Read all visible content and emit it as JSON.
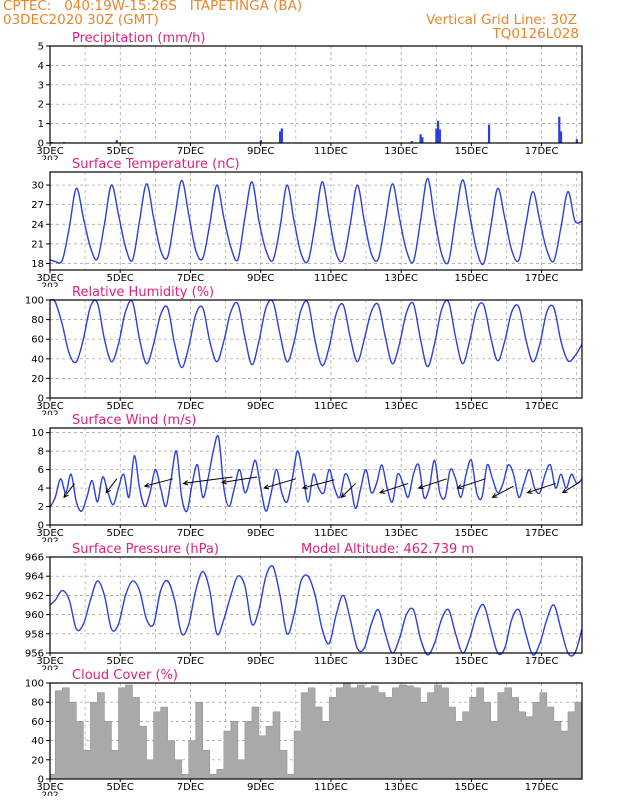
{
  "header": {
    "line1_left": "CPTEC:   040:19W-15:26S   ITAPETINGA (BA)",
    "line2_left": "03DEC2020 30Z (GMT)",
    "line2_right": "Vertical Grid Line: 30Z",
    "line3_right": "TQ0126L028"
  },
  "colors": {
    "header": "#e8862c",
    "title": "#e0207a",
    "series": "#2a3fe0",
    "cloud": "#a9a9a9",
    "grid": "#9a9a9a"
  },
  "x_axis": {
    "tick_labels": [
      "3DEC",
      "5DEC",
      "7DEC",
      "9DEC",
      "11DEC",
      "13DEC",
      "15DEC",
      "17DEC"
    ],
    "tick_days": [
      3,
      5,
      7,
      9,
      11,
      13,
      15,
      17
    ],
    "range_days": [
      3,
      18.15
    ],
    "year_fragment": "202"
  },
  "chart_data": [
    {
      "type": "bar",
      "title": "Precipitation (mm/h)",
      "ylim": [
        0,
        5
      ],
      "yticks": [
        "0",
        "1",
        "2",
        "3",
        "4",
        "5"
      ],
      "x_days": [
        3.05,
        3.4,
        4.9,
        9.0,
        9.55,
        9.6,
        13.3,
        13.55,
        13.6,
        14.0,
        14.05,
        14.1,
        15.5,
        17.5,
        17.55,
        18.0
      ],
      "values": [
        0.05,
        0.05,
        0.15,
        0.15,
        0.6,
        0.75,
        0.1,
        0.45,
        0.3,
        0.75,
        1.15,
        0.7,
        0.95,
        1.35,
        0.6,
        0.2
      ]
    },
    {
      "type": "line",
      "title": "Surface Temperature (nC)",
      "ylim": [
        17,
        32
      ],
      "yticks": [
        "18",
        "21",
        "24",
        "27",
        "30"
      ],
      "x_days": [
        3.0,
        3.15,
        3.35,
        3.55,
        3.75,
        3.95,
        4.15,
        4.35,
        4.55,
        4.75,
        4.95,
        5.15,
        5.35,
        5.55,
        5.75,
        5.95,
        6.15,
        6.35,
        6.55,
        6.75,
        6.95,
        7.15,
        7.35,
        7.55,
        7.75,
        7.95,
        8.15,
        8.35,
        8.55,
        8.75,
        8.95,
        9.15,
        9.35,
        9.55,
        9.75,
        9.95,
        10.15,
        10.35,
        10.55,
        10.75,
        10.95,
        11.15,
        11.35,
        11.55,
        11.75,
        11.95,
        12.15,
        12.35,
        12.55,
        12.75,
        12.95,
        13.15,
        13.35,
        13.55,
        13.75,
        13.95,
        14.15,
        14.35,
        14.55,
        14.75,
        14.95,
        15.15,
        15.35,
        15.55,
        15.75,
        15.95,
        16.15,
        16.35,
        16.55,
        16.75,
        16.95,
        17.15,
        17.35,
        17.55,
        17.75,
        17.95,
        18.15
      ],
      "values": [
        18.6,
        18.3,
        18.5,
        23.5,
        29.5,
        25.0,
        20.5,
        18.7,
        24.0,
        30.0,
        25.5,
        20.5,
        18.5,
        24.5,
        30.2,
        25.0,
        20.0,
        19.0,
        25.0,
        30.7,
        25.5,
        20.0,
        18.8,
        24.0,
        30.0,
        25.0,
        20.5,
        18.6,
        25.0,
        30.5,
        24.5,
        20.0,
        18.5,
        23.5,
        30.0,
        24.5,
        19.5,
        18.4,
        24.0,
        30.5,
        25.0,
        19.5,
        18.6,
        24.0,
        30.0,
        24.5,
        19.5,
        18.7,
        24.5,
        30.2,
        25.0,
        20.0,
        18.3,
        24.5,
        31.0,
        25.0,
        19.5,
        18.3,
        25.0,
        30.8,
        25.5,
        20.0,
        18.0,
        23.5,
        29.5,
        25.0,
        20.0,
        18.5,
        24.0,
        29.0,
        24.5,
        20.0,
        18.4,
        23.5,
        29.0,
        24.5,
        24.5
      ]
    },
    {
      "type": "line",
      "title": "Relative Humidity (%)",
      "ylim": [
        0,
        100
      ],
      "yticks": [
        "0",
        "20",
        "40",
        "60",
        "80",
        "100"
      ],
      "x_days": [
        3.0,
        3.15,
        3.35,
        3.55,
        3.75,
        3.95,
        4.15,
        4.35,
        4.55,
        4.75,
        4.95,
        5.15,
        5.35,
        5.55,
        5.75,
        5.95,
        6.15,
        6.35,
        6.55,
        6.75,
        6.95,
        7.15,
        7.35,
        7.55,
        7.75,
        7.95,
        8.15,
        8.35,
        8.55,
        8.75,
        8.95,
        9.15,
        9.35,
        9.55,
        9.75,
        9.95,
        10.15,
        10.35,
        10.55,
        10.75,
        10.95,
        11.15,
        11.35,
        11.55,
        11.75,
        11.95,
        12.15,
        12.35,
        12.55,
        12.75,
        12.95,
        13.15,
        13.35,
        13.55,
        13.75,
        13.95,
        14.15,
        14.35,
        14.55,
        14.75,
        14.95,
        15.15,
        15.35,
        15.55,
        15.75,
        15.95,
        16.15,
        16.35,
        16.55,
        16.75,
        16.95,
        17.15,
        17.35,
        17.55,
        17.75,
        17.95,
        18.15
      ],
      "values": [
        100,
        98,
        75,
        45,
        37,
        60,
        93,
        97,
        60,
        37,
        55,
        88,
        98,
        60,
        35,
        55,
        85,
        92,
        55,
        31,
        52,
        85,
        92,
        58,
        37,
        58,
        88,
        96,
        62,
        34,
        58,
        92,
        98,
        65,
        37,
        57,
        90,
        97,
        58,
        33,
        52,
        86,
        95,
        62,
        37,
        60,
        88,
        95,
        62,
        35,
        55,
        87,
        96,
        60,
        32,
        55,
        90,
        98,
        62,
        35,
        58,
        90,
        95,
        62,
        38,
        58,
        88,
        93,
        60,
        37,
        55,
        88,
        92,
        58,
        38,
        43,
        55
      ]
    },
    {
      "type": "line",
      "title": "Surface Wind (m/s)",
      "ylim": [
        0,
        10.5
      ],
      "yticks": [
        "0",
        "2",
        "4",
        "6",
        "8",
        "10"
      ],
      "x_days": [
        3.0,
        3.15,
        3.3,
        3.45,
        3.6,
        3.75,
        3.9,
        4.05,
        4.2,
        4.35,
        4.5,
        4.65,
        4.8,
        4.95,
        5.1,
        5.25,
        5.4,
        5.55,
        5.7,
        5.85,
        6.0,
        6.15,
        6.3,
        6.45,
        6.6,
        6.75,
        6.9,
        7.05,
        7.2,
        7.35,
        7.5,
        7.65,
        7.8,
        7.95,
        8.1,
        8.25,
        8.4,
        8.55,
        8.7,
        8.85,
        9.0,
        9.15,
        9.3,
        9.45,
        9.6,
        9.75,
        9.9,
        10.05,
        10.2,
        10.35,
        10.5,
        10.65,
        10.8,
        10.95,
        11.1,
        11.25,
        11.4,
        11.55,
        11.7,
        11.85,
        12.0,
        12.15,
        12.3,
        12.45,
        12.6,
        12.75,
        12.9,
        13.05,
        13.2,
        13.35,
        13.5,
        13.65,
        13.8,
        13.95,
        14.1,
        14.25,
        14.4,
        14.55,
        14.7,
        14.85,
        15.0,
        15.15,
        15.3,
        15.45,
        15.6,
        15.75,
        15.9,
        16.05,
        16.2,
        16.35,
        16.5,
        16.65,
        16.8,
        16.95,
        17.1,
        17.25,
        17.4,
        17.55,
        17.7,
        17.85,
        18.0,
        18.15
      ],
      "values": [
        1.9,
        3.0,
        5.0,
        3.5,
        5.5,
        2.5,
        1.5,
        3.0,
        4.8,
        2.5,
        5.2,
        3.5,
        2.2,
        4.0,
        5.5,
        3.0,
        7.5,
        4.0,
        2.0,
        3.5,
        6.0,
        4.0,
        2.0,
        5.0,
        8.0,
        3.0,
        1.5,
        4.5,
        6.5,
        3.0,
        5.0,
        8.0,
        9.5,
        4.0,
        2.0,
        4.0,
        6.0,
        3.5,
        5.0,
        7.0,
        4.0,
        1.5,
        3.5,
        6.0,
        3.5,
        2.5,
        5.0,
        8.0,
        5.5,
        2.5,
        5.5,
        4.0,
        3.5,
        6.0,
        4.0,
        3.0,
        5.5,
        4.5,
        1.8,
        4.0,
        6.0,
        3.5,
        4.5,
        6.5,
        4.0,
        2.5,
        5.5,
        4.5,
        3.0,
        5.5,
        6.5,
        3.0,
        4.0,
        7.0,
        3.5,
        3.0,
        6.0,
        5.0,
        3.0,
        5.5,
        7.0,
        3.5,
        3.0,
        6.5,
        5.0,
        3.5,
        4.5,
        6.5,
        5.5,
        3.0,
        4.5,
        6.0,
        4.0,
        3.5,
        5.5,
        6.5,
        4.0,
        5.5,
        4.0,
        5.5,
        4.5,
        5.0
      ],
      "arrow_days": [
        3.4,
        4.6,
        5.7,
        6.8,
        7.9,
        9.1,
        10.2,
        11.3,
        12.4,
        13.5,
        14.6,
        15.6,
        16.6,
        17.6
      ],
      "arrow_values": [
        3.0,
        3.5,
        4.2,
        4.5,
        4.6,
        4.0,
        4.0,
        3.0,
        3.5,
        4.0,
        4.0,
        3.0,
        3.5,
        3.5
      ],
      "arrow_dx_days": [
        0.3,
        0.3,
        0.8,
        1.4,
        1.0,
        0.9,
        0.9,
        0.4,
        0.8,
        0.8,
        0.8,
        0.6,
        0.8,
        0.5
      ],
      "arrow_dy": [
        1.5,
        1.5,
        0.8,
        0.7,
        0.6,
        1.0,
        0.9,
        1.5,
        1.0,
        1.0,
        1.0,
        1.2,
        1.0,
        1.2
      ]
    },
    {
      "type": "line",
      "title": "Surface Pressure (hPa)",
      "annotation": "Model Altitude: 462.739 m",
      "ylim": [
        956,
        966
      ],
      "yticks": [
        "956",
        "958",
        "960",
        "962",
        "964",
        "966"
      ],
      "x_days": [
        3.0,
        3.15,
        3.35,
        3.55,
        3.75,
        3.95,
        4.15,
        4.35,
        4.55,
        4.75,
        4.95,
        5.15,
        5.35,
        5.55,
        5.75,
        5.95,
        6.15,
        6.35,
        6.55,
        6.75,
        6.95,
        7.15,
        7.35,
        7.55,
        7.75,
        7.95,
        8.15,
        8.35,
        8.55,
        8.75,
        8.95,
        9.15,
        9.35,
        9.55,
        9.75,
        9.95,
        10.15,
        10.35,
        10.55,
        10.75,
        10.95,
        11.15,
        11.35,
        11.55,
        11.75,
        11.95,
        12.15,
        12.35,
        12.55,
        12.75,
        12.95,
        13.15,
        13.35,
        13.55,
        13.75,
        13.95,
        14.15,
        14.35,
        14.55,
        14.75,
        14.95,
        15.15,
        15.35,
        15.55,
        15.75,
        15.95,
        16.15,
        16.35,
        16.55,
        16.75,
        16.95,
        17.15,
        17.35,
        17.55,
        17.75,
        17.95,
        18.15
      ],
      "values": [
        961.0,
        961.5,
        962.5,
        961.5,
        958.5,
        959.0,
        961.5,
        963.5,
        962.0,
        958.5,
        959.0,
        962.0,
        963.5,
        962.5,
        959.5,
        959.0,
        962.5,
        963.5,
        961.5,
        958.0,
        959.0,
        962.5,
        964.5,
        962.5,
        958.0,
        959.5,
        962.0,
        964.0,
        963.0,
        959.0,
        960.5,
        964.0,
        965.0,
        962.0,
        958.0,
        960.0,
        963.5,
        964.0,
        962.0,
        958.5,
        957.0,
        960.0,
        962.0,
        959.5,
        956.5,
        956.5,
        959.0,
        960.5,
        958.0,
        956.0,
        957.5,
        960.0,
        960.5,
        957.5,
        955.8,
        957.0,
        959.5,
        960.5,
        958.0,
        956.0,
        957.5,
        960.0,
        961.0,
        958.5,
        956.0,
        956.5,
        959.5,
        960.5,
        958.0,
        955.8,
        957.0,
        959.5,
        961.0,
        958.5,
        956.0,
        956.0,
        958.5
      ]
    },
    {
      "type": "bar",
      "title": "Cloud Cover (%)",
      "ylim": [
        0,
        100
      ],
      "yticks": [
        "0",
        "20",
        "40",
        "60",
        "80",
        "100"
      ],
      "x_days": [
        3.0,
        3.15,
        3.35,
        3.55,
        3.75,
        3.95,
        4.15,
        4.35,
        4.55,
        4.75,
        4.95,
        5.15,
        5.35,
        5.55,
        5.75,
        5.95,
        6.15,
        6.35,
        6.55,
        6.75,
        6.95,
        7.15,
        7.35,
        7.55,
        7.75,
        7.95,
        8.15,
        8.35,
        8.55,
        8.75,
        8.95,
        9.15,
        9.35,
        9.55,
        9.75,
        9.95,
        10.15,
        10.35,
        10.55,
        10.75,
        10.95,
        11.15,
        11.35,
        11.55,
        11.75,
        11.95,
        12.15,
        12.35,
        12.55,
        12.75,
        12.95,
        13.15,
        13.35,
        13.55,
        13.75,
        13.95,
        14.15,
        14.35,
        14.55,
        14.75,
        14.95,
        15.15,
        15.35,
        15.55,
        15.75,
        15.95,
        16.15,
        16.35,
        16.55,
        16.75,
        16.95,
        17.15,
        17.35,
        17.55,
        17.75,
        17.95,
        18.15
      ],
      "values": [
        5,
        92,
        95,
        80,
        60,
        30,
        80,
        90,
        60,
        30,
        95,
        98,
        85,
        55,
        20,
        70,
        75,
        40,
        20,
        5,
        40,
        80,
        30,
        5,
        10,
        50,
        60,
        20,
        60,
        75,
        45,
        55,
        70,
        30,
        5,
        50,
        90,
        95,
        75,
        60,
        85,
        95,
        100,
        95,
        98,
        95,
        97,
        90,
        85,
        95,
        98,
        97,
        95,
        80,
        90,
        98,
        95,
        75,
        60,
        70,
        85,
        95,
        80,
        60,
        90,
        95,
        85,
        70,
        65,
        80,
        90,
        75,
        60,
        50,
        70,
        80,
        65
      ]
    }
  ]
}
